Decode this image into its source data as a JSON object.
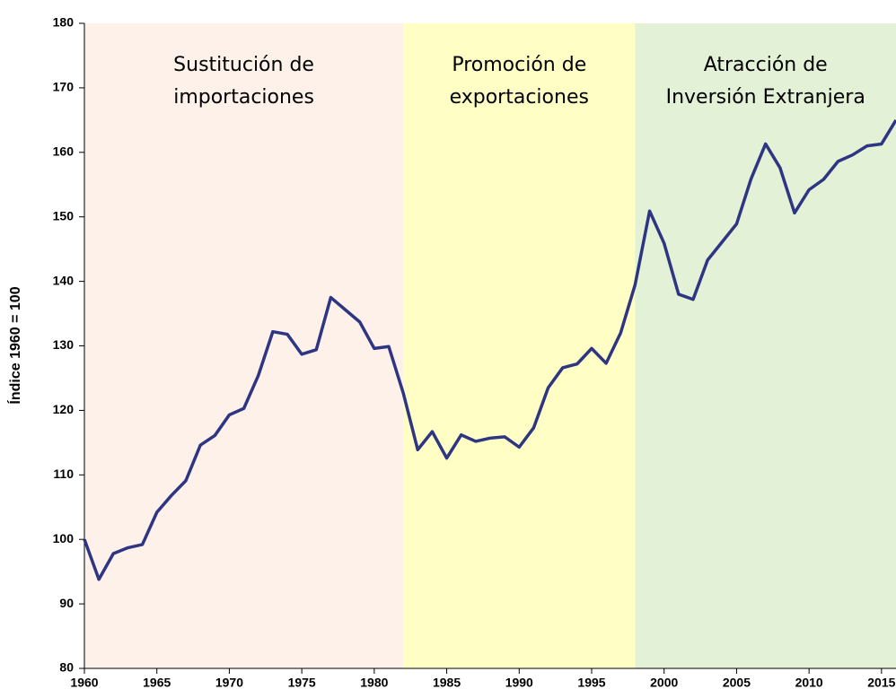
{
  "chart_data": {
    "type": "line",
    "y_label": "Índice 1960 = 100",
    "periods": [
      {
        "lines": [
          "Sustitución de",
          "importaciones"
        ],
        "start": 1960,
        "end": 1982,
        "color": "#fdf1ea"
      },
      {
        "lines": [
          "Promoción de",
          "exportaciones"
        ],
        "start": 1982,
        "end": 1998,
        "color": "#ffffc5"
      },
      {
        "lines": [
          "Atracción de",
          "Inversión Extranjera"
        ],
        "start": 1998,
        "end": 2016,
        "color": "#e3f1d7"
      }
    ],
    "x": [
      1960,
      1961,
      1962,
      1963,
      1964,
      1965,
      1966,
      1967,
      1968,
      1969,
      1970,
      1971,
      1972,
      1973,
      1974,
      1975,
      1976,
      1977,
      1978,
      1979,
      1980,
      1981,
      1982,
      1983,
      1984,
      1985,
      1986,
      1987,
      1988,
      1989,
      1990,
      1991,
      1992,
      1993,
      1994,
      1995,
      1996,
      1997,
      1998,
      1999,
      2000,
      2001,
      2002,
      2003,
      2004,
      2005,
      2006,
      2007,
      2008,
      2009,
      2010,
      2011,
      2012,
      2013,
      2014,
      2015,
      2016
    ],
    "series": [
      {
        "color": "#2e3582",
        "values": [
          100,
          93.8,
          97.8,
          98.7,
          99.2,
          104.2,
          106.8,
          109.1,
          114.6,
          116.1,
          119.3,
          120.3,
          125.4,
          132.2,
          131.8,
          128.7,
          129.4,
          137.5,
          135.6,
          133.7,
          129.6,
          129.9,
          122.7,
          113.9,
          116.7,
          112.6,
          116.2,
          115.2,
          115.7,
          115.9,
          114.3,
          117.3,
          123.5,
          126.6,
          127.2,
          129.6,
          127.3,
          132.0,
          139.5,
          150.9,
          145.9,
          138.0,
          137.2,
          143.3,
          146.1,
          148.9,
          155.9,
          161.3,
          157.6,
          150.6,
          154.2,
          155.8,
          158.6,
          159.6,
          161.0,
          161.3,
          165.0
        ]
      }
    ],
    "xlim": [
      1960,
      2016
    ],
    "xticks": [
      1960,
      1965,
      1970,
      1975,
      1980,
      1985,
      1990,
      1995,
      2000,
      2005,
      2010,
      2015
    ],
    "ylim": [
      80,
      180
    ],
    "yticks": [
      80,
      90,
      100,
      110,
      120,
      130,
      140,
      150,
      160,
      170,
      180
    ]
  }
}
